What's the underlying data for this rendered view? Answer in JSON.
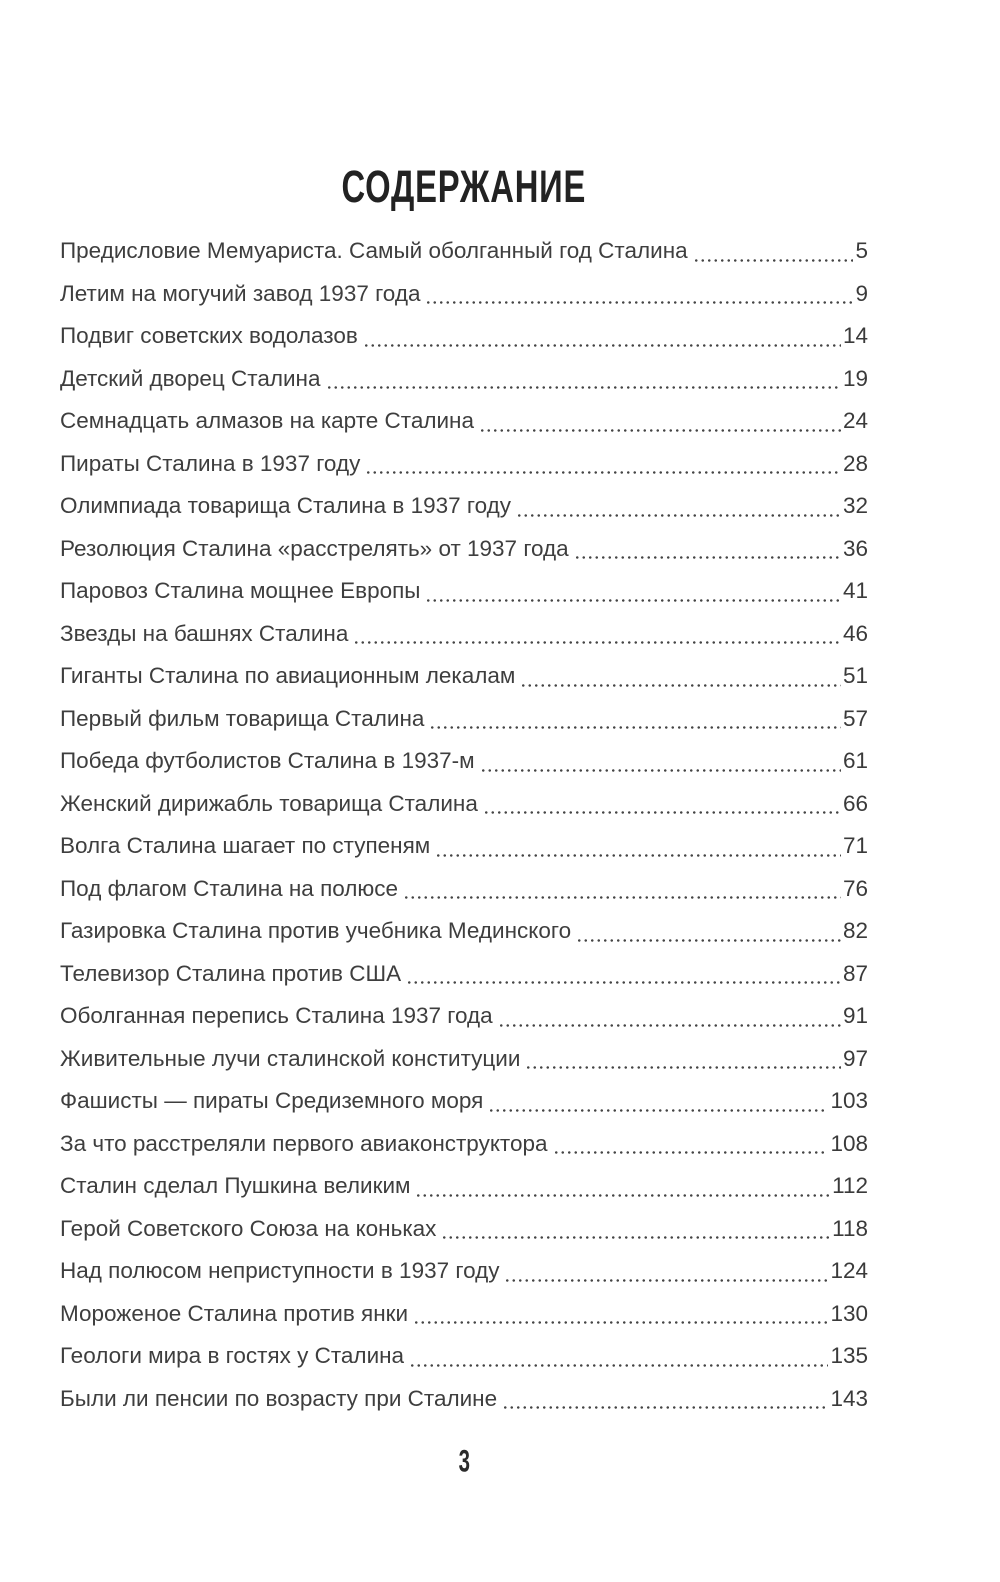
{
  "page": {
    "title": "СОДЕРЖАНИЕ",
    "page_number": "3"
  },
  "toc": {
    "entries": [
      {
        "title": "Предисловие Мемуариста. Самый оболганный год Сталина",
        "page": "5"
      },
      {
        "title": "Летим на могучий завод 1937 года",
        "page": "9"
      },
      {
        "title": "Подвиг советских водолазов",
        "page": "14"
      },
      {
        "title": "Детский дворец Сталина",
        "page": "19"
      },
      {
        "title": "Семнадцать алмазов на карте Сталина",
        "page": "24"
      },
      {
        "title": "Пираты Сталина в 1937 году",
        "page": "28"
      },
      {
        "title": "Олимпиада товарища Сталина в 1937 году",
        "page": "32"
      },
      {
        "title": "Резолюция Сталина «расстрелять» от 1937 года",
        "page": "36"
      },
      {
        "title": "Паровоз Сталина мощнее Европы",
        "page": "41"
      },
      {
        "title": "Звезды на башнях Сталина",
        "page": "46"
      },
      {
        "title": "Гиганты Сталина по авиационным лекалам",
        "page": "51"
      },
      {
        "title": "Первый фильм товарища Сталина",
        "page": "57"
      },
      {
        "title": "Победа футболистов Сталина в 1937-м",
        "page": "61"
      },
      {
        "title": "Женский дирижабль товарища Сталина",
        "page": "66"
      },
      {
        "title": "Волга Сталина шагает по ступеням",
        "page": "71"
      },
      {
        "title": "Под флагом Сталина на полюсе",
        "page": "76"
      },
      {
        "title": "Газировка Сталина против учебника Мединского",
        "page": "82"
      },
      {
        "title": "Телевизор Сталина против США",
        "page": "87"
      },
      {
        "title": "Оболганная перепись Сталина 1937 года",
        "page": "91"
      },
      {
        "title": "Живительные лучи сталинской конституции",
        "page": "97"
      },
      {
        "title": "Фашисты — пираты Средиземного моря",
        "page": "103"
      },
      {
        "title": "За что расстреляли первого авиаконструктора",
        "page": "108"
      },
      {
        "title": "Сталин сделал Пушкина великим",
        "page": "112"
      },
      {
        "title": "Герой Советского Союза на коньках",
        "page": "118"
      },
      {
        "title": "Над полюсом неприступности в 1937 году",
        "page": "124"
      },
      {
        "title": "Мороженое Сталина против янки",
        "page": "130"
      },
      {
        "title": "Геологи мира в гостях у Сталина",
        "page": "135"
      },
      {
        "title": "Были ли пенсии по возрасту при Сталине",
        "page": "143"
      }
    ]
  }
}
